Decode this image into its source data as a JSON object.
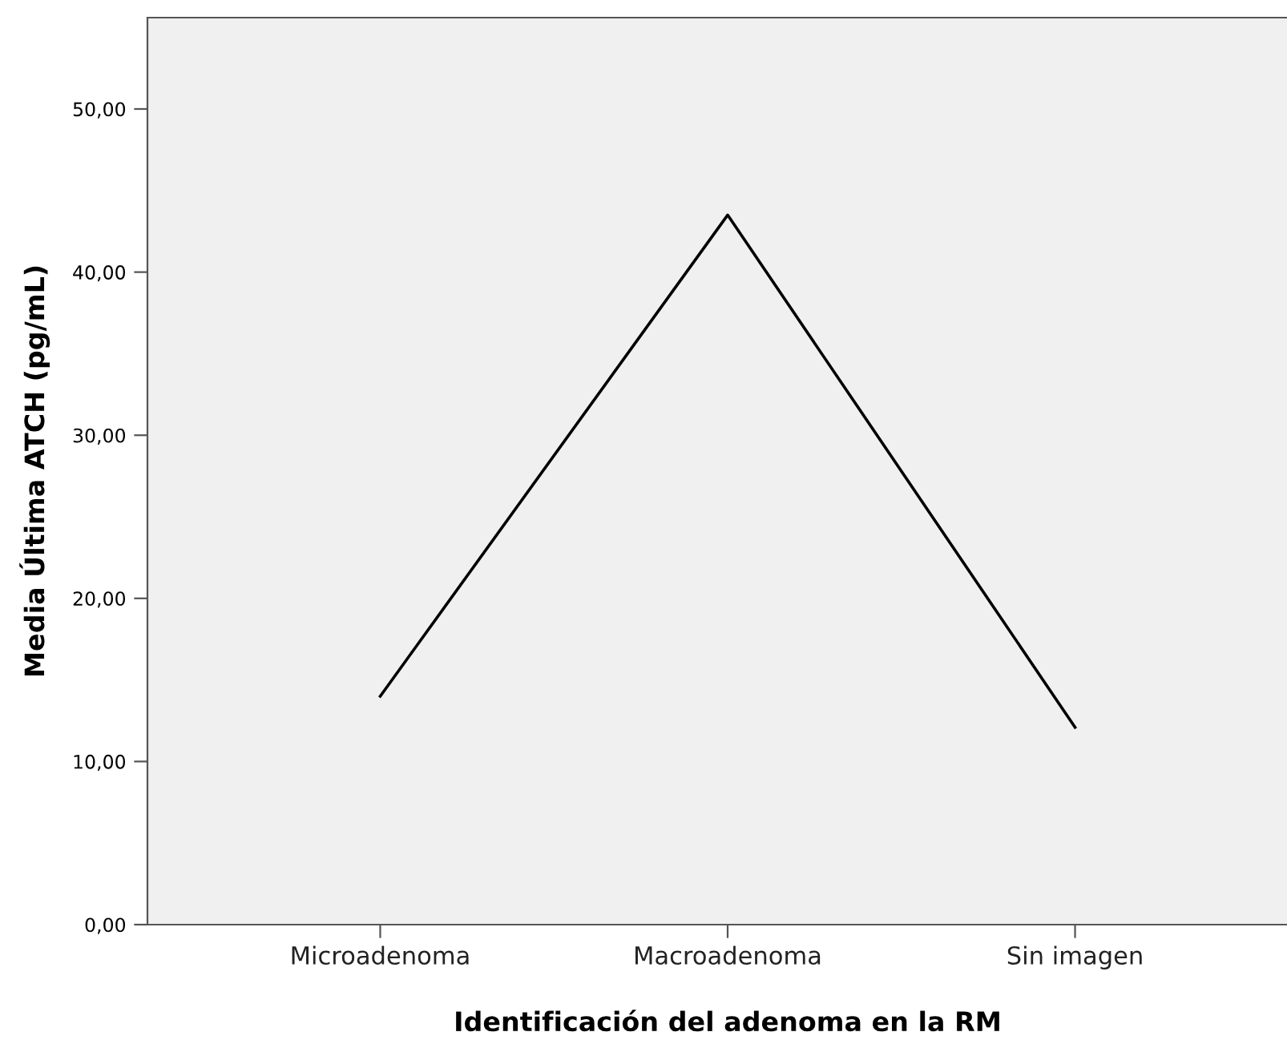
{
  "chart_data": {
    "type": "line",
    "xlabel": "Identificación del adenoma en la RM",
    "ylabel": "Media Última ATCH (pg/mL)",
    "categories": [
      "Microadenoma",
      "Macroadenoma",
      "Sin imagen"
    ],
    "series": [
      {
        "color": "#000000",
        "values": [
          14.0,
          43.5,
          12.1
        ]
      }
    ],
    "ylim": [
      0,
      55.6
    ],
    "yticks": [
      {
        "value": 0,
        "label": "0,00"
      },
      {
        "value": 10,
        "label": "10,00"
      },
      {
        "value": 20,
        "label": "20,00"
      },
      {
        "value": 30,
        "label": "30,00"
      },
      {
        "value": 40,
        "label": "40,00"
      },
      {
        "value": 50,
        "label": "50,00"
      }
    ],
    "grid": false,
    "legend": false,
    "marker": "none",
    "line_style": "solid"
  }
}
